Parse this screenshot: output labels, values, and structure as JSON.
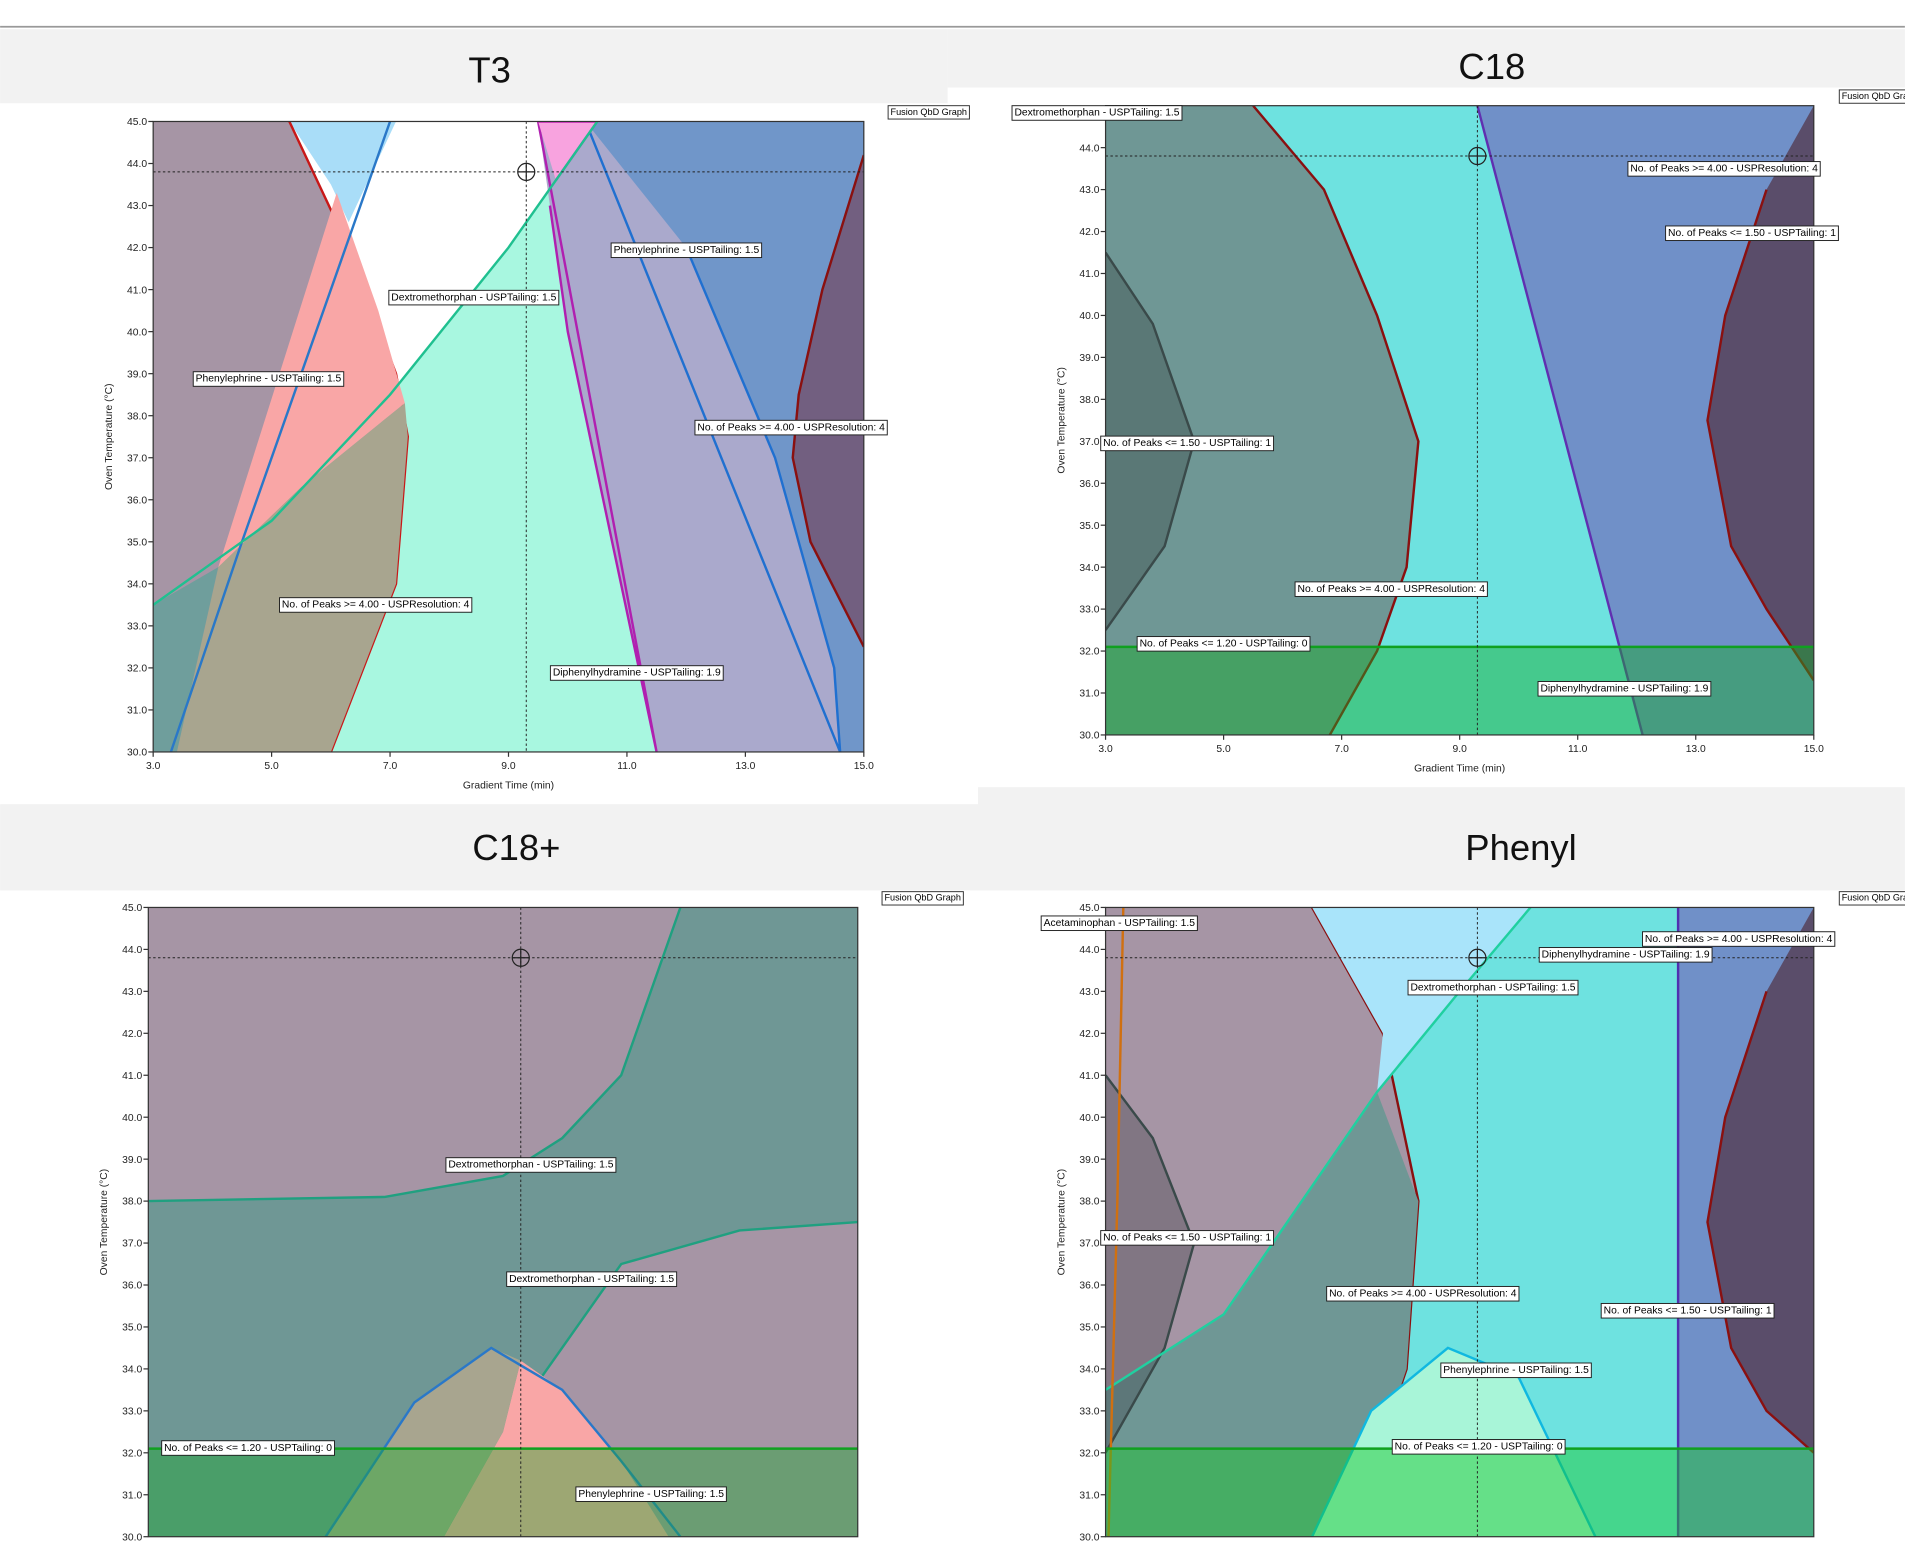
{
  "chart_data": [
    {
      "type": "contour",
      "title": "T3",
      "watermark": "Fusion QbD Graph",
      "xlabel": "Gradient Time (min)",
      "ylabel": "Oven Temperature (°C)",
      "xlim": [
        3,
        15
      ],
      "ylim": [
        30,
        45
      ],
      "xticks": [
        {
          "value": 3,
          "label": "3.0"
        },
        {
          "value": 5,
          "label": "5.0"
        },
        {
          "value": 7,
          "label": "7.0"
        },
        {
          "value": 9,
          "label": "9.0"
        },
        {
          "value": 11,
          "label": "11.0"
        },
        {
          "value": 13,
          "label": "13.0"
        },
        {
          "value": 15,
          "label": "15.0"
        }
      ],
      "yticks": [
        {
          "value": 30,
          "label": "30.0"
        },
        {
          "value": 31,
          "label": "31.0"
        },
        {
          "value": 32,
          "label": "32.0"
        },
        {
          "value": 33,
          "label": "33.0"
        },
        {
          "value": 34,
          "label": "34.0"
        },
        {
          "value": 35,
          "label": "35.0"
        },
        {
          "value": 36,
          "label": "36.0"
        },
        {
          "value": 37,
          "label": "37.0"
        },
        {
          "value": 38,
          "label": "38.0"
        },
        {
          "value": 39,
          "label": "39.0"
        },
        {
          "value": 40,
          "label": "40.0"
        },
        {
          "value": 41,
          "label": "41.0"
        },
        {
          "value": 42,
          "label": "42.0"
        },
        {
          "value": 43,
          "label": "43.0"
        },
        {
          "value": 44,
          "label": "44.0"
        },
        {
          "value": 45,
          "label": "45.0"
        }
      ],
      "crosshair": {
        "x": 9.3,
        "y": 43.8
      },
      "annotations": [
        "Phenylephrine - USPTailing: 1.5",
        "Dextromethorphan - USPTailing: 1.5",
        "Phenylephrine - USPTailing: 1.5",
        "No. of Peaks >= 4.00 - USPResolution: 4",
        "No. of Peaks >= 4.00 - USPResolution: 4",
        "Diphenylhydramine - USPTailing: 1.9"
      ]
    },
    {
      "type": "contour",
      "title": "C18",
      "watermark": "Fusion QbD Graph",
      "xlabel": "Gradient Time (min)",
      "ylabel": "Oven Temperature (°C)",
      "xlim": [
        3,
        15
      ],
      "ylim": [
        30,
        45
      ],
      "xticks": [
        {
          "value": 3,
          "label": "3.0"
        },
        {
          "value": 5,
          "label": "5.0"
        },
        {
          "value": 7,
          "label": "7.0"
        },
        {
          "value": 9,
          "label": "9.0"
        },
        {
          "value": 11,
          "label": "11.0"
        },
        {
          "value": 13,
          "label": "13.0"
        },
        {
          "value": 15,
          "label": "15.0"
        }
      ],
      "yticks": [
        {
          "value": 30,
          "label": "30.0"
        },
        {
          "value": 31,
          "label": "31.0"
        },
        {
          "value": 32,
          "label": "32.0"
        },
        {
          "value": 33,
          "label": "33.0"
        },
        {
          "value": 34,
          "label": "34.0"
        },
        {
          "value": 35,
          "label": "35.0"
        },
        {
          "value": 36,
          "label": "36.0"
        },
        {
          "value": 37,
          "label": "37.0"
        },
        {
          "value": 38,
          "label": "38.0"
        },
        {
          "value": 39,
          "label": "39.0"
        },
        {
          "value": 40,
          "label": "40.0"
        },
        {
          "value": 41,
          "label": "41.0"
        },
        {
          "value": 42,
          "label": "42.0"
        },
        {
          "value": 43,
          "label": "43.0"
        },
        {
          "value": 44,
          "label": "44.0"
        }
      ],
      "crosshair": {
        "x": 9.3,
        "y": 43.8
      },
      "annotations": [
        "Dextromethorphan - USPTailing: 1.5",
        "No. of Peaks >= 4.00 - USPResolution: 4",
        "No. of Peaks <= 1.50 - USPTailing: 1",
        "No. of Peaks <= 1.50 - USPTailing: 1",
        "No. of Peaks >= 4.00 - USPResolution: 4",
        "No. of Peaks <= 1.20 - USPTailing: 0",
        "Diphenylhydramine - USPTailing: 1.9"
      ]
    },
    {
      "type": "contour",
      "title": "C18+",
      "watermark": "Fusion QbD Graph",
      "ylabel": "Oven Temperature (°C)",
      "xlim": [
        3,
        15
      ],
      "ylim": [
        30,
        45
      ],
      "yticks": [
        {
          "value": 30,
          "label": "30.0"
        },
        {
          "value": 31,
          "label": "31.0"
        },
        {
          "value": 32,
          "label": "32.0"
        },
        {
          "value": 33,
          "label": "33.0"
        },
        {
          "value": 34,
          "label": "34.0"
        },
        {
          "value": 35,
          "label": "35.0"
        },
        {
          "value": 36,
          "label": "36.0"
        },
        {
          "value": 37,
          "label": "37.0"
        },
        {
          "value": 38,
          "label": "38.0"
        },
        {
          "value": 39,
          "label": "39.0"
        },
        {
          "value": 40,
          "label": "40.0"
        },
        {
          "value": 41,
          "label": "41.0"
        },
        {
          "value": 42,
          "label": "42.0"
        },
        {
          "value": 43,
          "label": "43.0"
        },
        {
          "value": 44,
          "label": "44.0"
        },
        {
          "value": 45,
          "label": "45.0"
        }
      ],
      "crosshair": {
        "x": 9.3,
        "y": 43.8
      },
      "annotations": [
        "Dextromethorphan - USPTailing: 1.5",
        "Dextromethorphan - USPTailing: 1.5",
        "No. of Peaks <= 1.20 - USPTailing: 0",
        "Phenylephrine - USPTailing: 1.5"
      ]
    },
    {
      "type": "contour",
      "title": "Phenyl",
      "watermark": "Fusion QbD Graph",
      "ylabel": "Oven Temperature (°C)",
      "xlim": [
        3,
        15
      ],
      "ylim": [
        30,
        45
      ],
      "yticks": [
        {
          "value": 30,
          "label": "30.0"
        },
        {
          "value": 31,
          "label": "31.0"
        },
        {
          "value": 32,
          "label": "32.0"
        },
        {
          "value": 33,
          "label": "33.0"
        },
        {
          "value": 34,
          "label": "34.0"
        },
        {
          "value": 35,
          "label": "35.0"
        },
        {
          "value": 36,
          "label": "36.0"
        },
        {
          "value": 37,
          "label": "37.0"
        },
        {
          "value": 38,
          "label": "38.0"
        },
        {
          "value": 39,
          "label": "39.0"
        },
        {
          "value": 40,
          "label": "40.0"
        },
        {
          "value": 41,
          "label": "41.0"
        },
        {
          "value": 42,
          "label": "42.0"
        },
        {
          "value": 43,
          "label": "43.0"
        },
        {
          "value": 44,
          "label": "44.0"
        },
        {
          "value": 45,
          "label": "45.0"
        }
      ],
      "crosshair": {
        "x": 9.3,
        "y": 43.8
      },
      "annotations": [
        "Acetaminophan - USPTailing: 1.5",
        "No. of Peaks >= 4.00 - USPResolution: 4",
        "Diphenylhydramine - USPTailing: 1.9",
        "Dextromethorphan - USPTailing: 1.5",
        "No. of Peaks <= 1.50 - USPTailing: 1",
        "No. of Peaks >= 4.00 - USPResolution: 4",
        "No. of Peaks <= 1.50 - USPTailing: 1",
        "Phenylephrine - USPTailing: 1.5",
        "No. of Peaks <= 1.20 - USPTailing: 0"
      ]
    }
  ]
}
